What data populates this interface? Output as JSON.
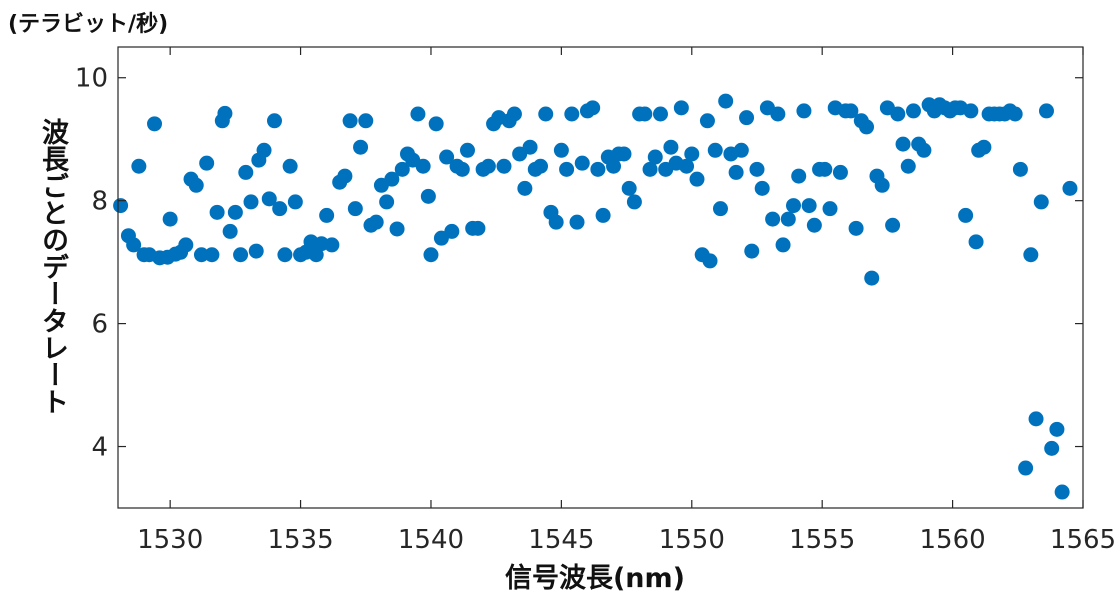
{
  "chart_data": {
    "type": "scatter",
    "unit_label": "(テラビット/秒)",
    "xlabel": "信号波長(nm)",
    "ylabel": "波長ごとのデータレート",
    "xlim": [
      1528,
      1565
    ],
    "ylim": [
      3,
      10.5
    ],
    "xticks": [
      1530,
      1535,
      1540,
      1545,
      1550,
      1555,
      1560,
      1565
    ],
    "yticks": [
      4,
      6,
      8,
      10
    ],
    "grid": false,
    "marker_color": "#0072BD",
    "series": [
      {
        "points": [
          [
            1528.1,
            7.92
          ],
          [
            1528.4,
            7.43
          ],
          [
            1528.6,
            7.28
          ],
          [
            1528.8,
            8.56
          ],
          [
            1529.0,
            7.12
          ],
          [
            1529.2,
            7.12
          ],
          [
            1529.4,
            9.25
          ],
          [
            1529.6,
            7.07
          ],
          [
            1529.9,
            7.08
          ],
          [
            1530.0,
            7.7
          ],
          [
            1530.2,
            7.13
          ],
          [
            1530.4,
            7.16
          ],
          [
            1530.6,
            7.28
          ],
          [
            1530.8,
            8.35
          ],
          [
            1531.0,
            8.25
          ],
          [
            1531.2,
            7.12
          ],
          [
            1531.4,
            8.61
          ],
          [
            1531.6,
            7.12
          ],
          [
            1531.8,
            7.81
          ],
          [
            1532.0,
            9.3
          ],
          [
            1532.1,
            9.42
          ],
          [
            1532.3,
            7.5
          ],
          [
            1532.5,
            7.81
          ],
          [
            1532.7,
            7.12
          ],
          [
            1532.9,
            8.46
          ],
          [
            1533.1,
            7.98
          ],
          [
            1533.3,
            7.18
          ],
          [
            1533.4,
            8.66
          ],
          [
            1533.6,
            8.82
          ],
          [
            1533.8,
            8.03
          ],
          [
            1534.0,
            9.3
          ],
          [
            1534.2,
            7.87
          ],
          [
            1534.4,
            7.12
          ],
          [
            1534.6,
            8.56
          ],
          [
            1534.8,
            7.98
          ],
          [
            1535.0,
            7.12
          ],
          [
            1535.2,
            7.16
          ],
          [
            1535.4,
            7.33
          ],
          [
            1535.6,
            7.12
          ],
          [
            1535.8,
            7.3
          ],
          [
            1536.0,
            7.76
          ],
          [
            1536.2,
            7.28
          ],
          [
            1536.5,
            8.3
          ],
          [
            1536.7,
            8.4
          ],
          [
            1536.9,
            9.3
          ],
          [
            1537.1,
            7.87
          ],
          [
            1537.3,
            8.87
          ],
          [
            1537.5,
            9.3
          ],
          [
            1537.7,
            7.6
          ],
          [
            1537.9,
            7.65
          ],
          [
            1538.1,
            8.25
          ],
          [
            1538.3,
            7.98
          ],
          [
            1538.5,
            8.35
          ],
          [
            1538.7,
            7.54
          ],
          [
            1538.9,
            8.51
          ],
          [
            1539.1,
            8.76
          ],
          [
            1539.3,
            8.66
          ],
          [
            1539.5,
            9.41
          ],
          [
            1539.7,
            8.56
          ],
          [
            1539.9,
            8.07
          ],
          [
            1540.0,
            7.12
          ],
          [
            1540.2,
            9.25
          ],
          [
            1540.4,
            7.39
          ],
          [
            1540.6,
            8.71
          ],
          [
            1540.8,
            7.5
          ],
          [
            1541.0,
            8.56
          ],
          [
            1541.2,
            8.51
          ],
          [
            1541.4,
            8.82
          ],
          [
            1541.6,
            7.55
          ],
          [
            1541.8,
            7.55
          ],
          [
            1542.0,
            8.51
          ],
          [
            1542.2,
            8.56
          ],
          [
            1542.4,
            9.25
          ],
          [
            1542.6,
            9.35
          ],
          [
            1542.8,
            8.56
          ],
          [
            1543.0,
            9.3
          ],
          [
            1543.2,
            9.41
          ],
          [
            1543.4,
            8.76
          ],
          [
            1543.6,
            8.2
          ],
          [
            1543.8,
            8.87
          ],
          [
            1544.0,
            8.51
          ],
          [
            1544.2,
            8.56
          ],
          [
            1544.4,
            9.41
          ],
          [
            1544.6,
            7.81
          ],
          [
            1544.8,
            7.65
          ],
          [
            1545.0,
            8.82
          ],
          [
            1545.2,
            8.51
          ],
          [
            1545.4,
            9.41
          ],
          [
            1545.6,
            7.65
          ],
          [
            1545.8,
            8.61
          ],
          [
            1546.0,
            9.46
          ],
          [
            1546.2,
            9.51
          ],
          [
            1546.4,
            8.51
          ],
          [
            1546.6,
            7.76
          ],
          [
            1546.8,
            8.71
          ],
          [
            1547.0,
            8.56
          ],
          [
            1547.2,
            8.76
          ],
          [
            1547.4,
            8.76
          ],
          [
            1547.6,
            8.2
          ],
          [
            1547.8,
            7.98
          ],
          [
            1548.0,
            9.41
          ],
          [
            1548.2,
            9.41
          ],
          [
            1548.4,
            8.51
          ],
          [
            1548.6,
            8.71
          ],
          [
            1548.8,
            9.41
          ],
          [
            1549.0,
            8.51
          ],
          [
            1549.2,
            8.87
          ],
          [
            1549.4,
            8.61
          ],
          [
            1549.6,
            9.51
          ],
          [
            1549.8,
            8.56
          ],
          [
            1550.0,
            8.76
          ],
          [
            1550.2,
            8.35
          ],
          [
            1550.4,
            7.12
          ],
          [
            1550.6,
            9.3
          ],
          [
            1550.7,
            7.02
          ],
          [
            1550.9,
            8.82
          ],
          [
            1551.1,
            7.87
          ],
          [
            1551.3,
            9.62
          ],
          [
            1551.5,
            8.76
          ],
          [
            1551.7,
            8.46
          ],
          [
            1551.9,
            8.82
          ],
          [
            1552.1,
            9.35
          ],
          [
            1552.3,
            7.18
          ],
          [
            1552.5,
            8.51
          ],
          [
            1552.7,
            8.2
          ],
          [
            1552.9,
            9.51
          ],
          [
            1553.1,
            7.7
          ],
          [
            1553.3,
            9.41
          ],
          [
            1553.5,
            7.28
          ],
          [
            1553.7,
            7.7
          ],
          [
            1553.9,
            7.92
          ],
          [
            1554.1,
            8.4
          ],
          [
            1554.3,
            9.46
          ],
          [
            1554.5,
            7.92
          ],
          [
            1554.7,
            7.6
          ],
          [
            1554.9,
            8.51
          ],
          [
            1555.1,
            8.51
          ],
          [
            1555.3,
            7.87
          ],
          [
            1555.5,
            9.51
          ],
          [
            1555.7,
            8.46
          ],
          [
            1555.9,
            9.46
          ],
          [
            1556.1,
            9.46
          ],
          [
            1556.3,
            7.55
          ],
          [
            1556.5,
            9.3
          ],
          [
            1556.7,
            9.2
          ],
          [
            1556.9,
            6.74
          ],
          [
            1557.1,
            8.4
          ],
          [
            1557.3,
            8.25
          ],
          [
            1557.5,
            9.51
          ],
          [
            1557.7,
            7.6
          ],
          [
            1557.9,
            9.41
          ],
          [
            1558.1,
            8.92
          ],
          [
            1558.3,
            8.56
          ],
          [
            1558.5,
            9.46
          ],
          [
            1558.7,
            8.92
          ],
          [
            1558.9,
            8.82
          ],
          [
            1559.1,
            9.56
          ],
          [
            1559.3,
            9.46
          ],
          [
            1559.5,
            9.56
          ],
          [
            1559.7,
            9.51
          ],
          [
            1559.9,
            9.46
          ],
          [
            1560.1,
            9.51
          ],
          [
            1560.3,
            9.51
          ],
          [
            1560.5,
            7.76
          ],
          [
            1560.7,
            9.46
          ],
          [
            1560.9,
            7.33
          ],
          [
            1561.0,
            8.82
          ],
          [
            1561.2,
            8.87
          ],
          [
            1561.4,
            9.41
          ],
          [
            1561.6,
            9.41
          ],
          [
            1561.8,
            9.41
          ],
          [
            1562.0,
            9.41
          ],
          [
            1562.2,
            9.46
          ],
          [
            1562.4,
            9.41
          ],
          [
            1562.6,
            8.51
          ],
          [
            1562.8,
            3.65
          ],
          [
            1563.0,
            7.12
          ],
          [
            1563.2,
            4.45
          ],
          [
            1563.4,
            7.98
          ],
          [
            1563.6,
            9.46
          ],
          [
            1563.8,
            3.97
          ],
          [
            1564.0,
            4.28
          ],
          [
            1564.2,
            3.26
          ],
          [
            1564.5,
            8.2
          ]
        ]
      }
    ]
  }
}
